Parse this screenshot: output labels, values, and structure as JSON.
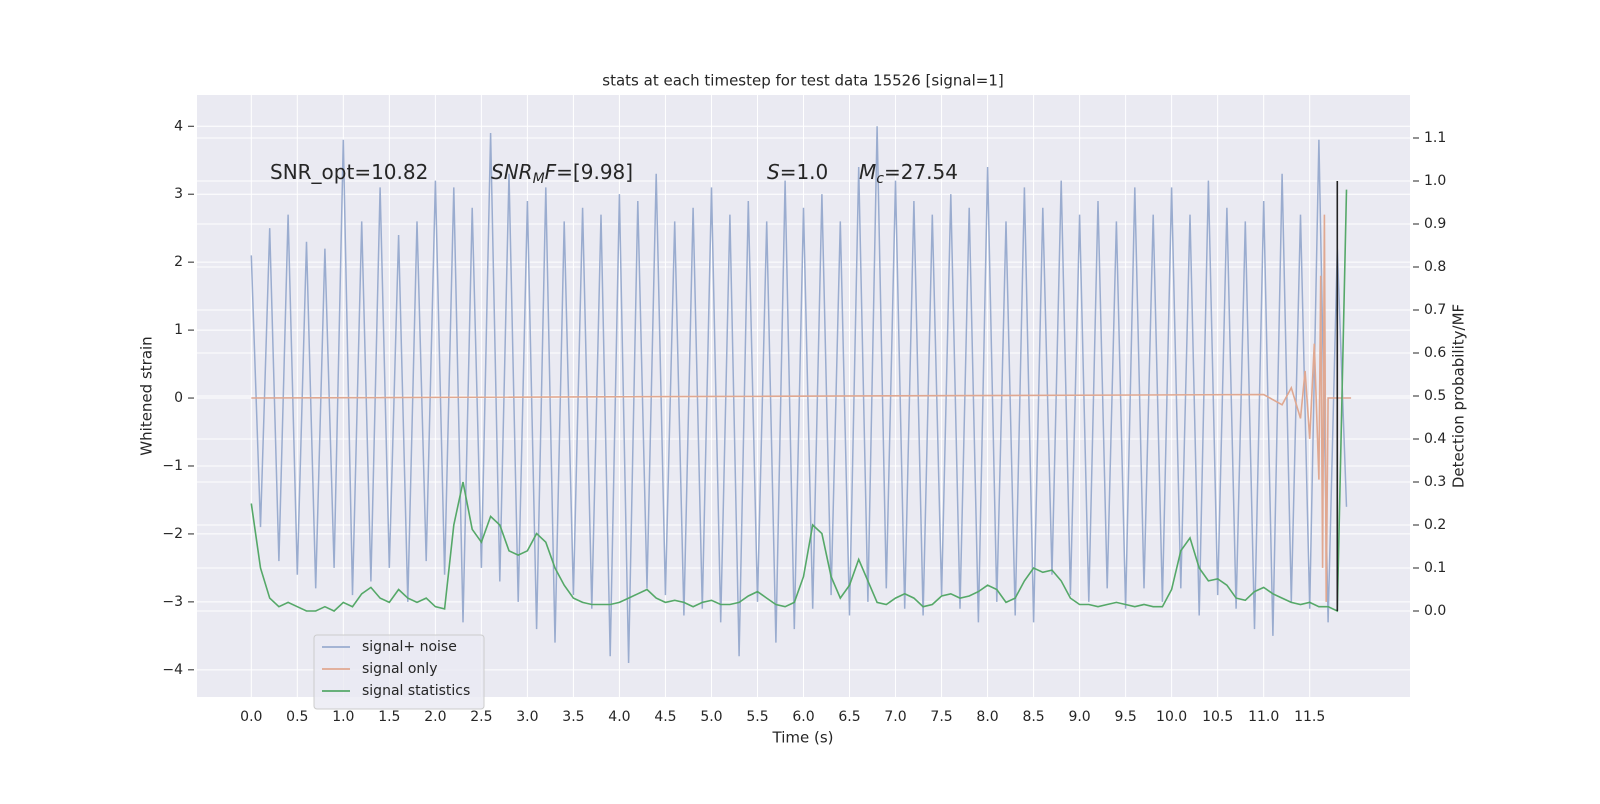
{
  "chart_data": {
    "type": "line",
    "title": "stats at each timestep for test data 15526 [signal=1]",
    "xlabel": "Time (s)",
    "ylabel": "Whitened strain",
    "y2label": "Detection probability/MF",
    "x": [
      0.0,
      0.1,
      0.2,
      0.3,
      0.4,
      0.5,
      0.6,
      0.7,
      0.8,
      0.9,
      1.0,
      1.1,
      1.2,
      1.3,
      1.4,
      1.5,
      1.6,
      1.7,
      1.8,
      1.9,
      2.0,
      2.1,
      2.2,
      2.3,
      2.4,
      2.5,
      2.6,
      2.7,
      2.8,
      2.9,
      3.0,
      3.1,
      3.2,
      3.3,
      3.4,
      3.5,
      3.6,
      3.7,
      3.8,
      3.9,
      4.0,
      4.1,
      4.2,
      4.3,
      4.4,
      4.5,
      4.6,
      4.7,
      4.8,
      4.9,
      5.0,
      5.1,
      5.2,
      5.3,
      5.4,
      5.5,
      5.6,
      5.7,
      5.8,
      5.9,
      6.0,
      6.1,
      6.2,
      6.3,
      6.4,
      6.5,
      6.6,
      6.7,
      6.8,
      6.9,
      7.0,
      7.1,
      7.2,
      7.3,
      7.4,
      7.5,
      7.6,
      7.7,
      7.8,
      7.9,
      8.0,
      8.1,
      8.2,
      8.3,
      8.4,
      8.5,
      8.6,
      8.7,
      8.8,
      8.9,
      9.0,
      9.1,
      9.2,
      9.3,
      9.4,
      9.5,
      9.6,
      9.7,
      9.8,
      9.9,
      10.0,
      10.1,
      10.2,
      10.3,
      10.4,
      10.5,
      10.6,
      10.7,
      10.8,
      10.9,
      11.0,
      11.1,
      11.2,
      11.3,
      11.4,
      11.5,
      11.6,
      11.7,
      11.8,
      11.9
    ],
    "series": [
      {
        "name": "signal+ noise",
        "color": "#9aaccf",
        "values": [
          2.1,
          -1.9,
          2.5,
          -2.4,
          2.7,
          -2.6,
          2.3,
          -2.8,
          2.2,
          -2.5,
          3.8,
          -2.9,
          2.6,
          -2.7,
          3.1,
          -2.5,
          2.4,
          -3.0,
          2.6,
          -2.4,
          3.2,
          -2.6,
          3.1,
          -3.3,
          2.8,
          -2.5,
          3.9,
          -2.7,
          3.3,
          -3.0,
          2.9,
          -3.4,
          3.1,
          -3.6,
          2.6,
          -2.9,
          2.8,
          -3.1,
          2.7,
          -3.8,
          3.0,
          -3.9,
          2.9,
          -2.8,
          3.3,
          -2.9,
          2.6,
          -3.2,
          2.8,
          -3.1,
          3.1,
          -3.3,
          2.7,
          -3.8,
          2.9,
          -3.0,
          2.6,
          -3.6,
          3.2,
          -3.4,
          2.8,
          -3.1,
          3.0,
          -2.9,
          2.6,
          -3.2,
          3.4,
          -3.0,
          4.0,
          -2.8,
          3.2,
          -3.1,
          2.9,
          -3.2,
          2.7,
          -2.9,
          3.0,
          -3.1,
          2.8,
          -3.3,
          3.4,
          -3.0,
          2.6,
          -3.2,
          3.1,
          -3.3,
          2.8,
          -2.6,
          3.2,
          -2.9,
          2.7,
          -3.0,
          2.9,
          -2.8,
          2.6,
          -3.1,
          3.1,
          -2.8,
          2.7,
          -3.0,
          3.1,
          -2.8,
          2.7,
          -3.2,
          3.2,
          -2.9,
          2.8,
          -3.1,
          2.6,
          -3.4,
          2.9,
          -3.5,
          3.3,
          -3.0,
          2.7,
          -3.1,
          3.8,
          -3.3,
          2.2,
          -1.6
        ]
      },
      {
        "name": "signal only",
        "color": "#e0a891",
        "x": [
          0.0,
          11.0,
          11.2,
          11.3,
          11.4,
          11.45,
          11.5,
          11.55,
          11.6,
          11.62,
          11.64,
          11.66,
          11.68,
          11.7,
          11.95
        ],
        "values": [
          0.0,
          0.05,
          -0.1,
          0.15,
          -0.3,
          0.4,
          -0.6,
          0.8,
          -1.2,
          1.8,
          -2.5,
          2.7,
          -3.0,
          0.0,
          0.0
        ]
      },
      {
        "name": "signal statistics",
        "color": "#55a868",
        "axis": "y2",
        "values": [
          0.25,
          0.1,
          0.03,
          0.01,
          0.02,
          0.01,
          0.0,
          0.0,
          0.01,
          0.0,
          0.02,
          0.01,
          0.04,
          0.055,
          0.03,
          0.02,
          0.05,
          0.03,
          0.02,
          0.03,
          0.01,
          0.005,
          0.2,
          0.3,
          0.19,
          0.16,
          0.22,
          0.2,
          0.14,
          0.13,
          0.14,
          0.18,
          0.16,
          0.1,
          0.06,
          0.03,
          0.02,
          0.015,
          0.015,
          0.015,
          0.02,
          0.03,
          0.04,
          0.05,
          0.03,
          0.02,
          0.025,
          0.02,
          0.01,
          0.02,
          0.025,
          0.015,
          0.015,
          0.02,
          0.035,
          0.045,
          0.03,
          0.015,
          0.01,
          0.02,
          0.08,
          0.2,
          0.18,
          0.08,
          0.03,
          0.06,
          0.12,
          0.07,
          0.02,
          0.015,
          0.03,
          0.04,
          0.03,
          0.01,
          0.015,
          0.035,
          0.04,
          0.03,
          0.035,
          0.045,
          0.06,
          0.05,
          0.02,
          0.03,
          0.07,
          0.1,
          0.09,
          0.095,
          0.07,
          0.03,
          0.015,
          0.015,
          0.01,
          0.015,
          0.02,
          0.015,
          0.01,
          0.015,
          0.01,
          0.01,
          0.05,
          0.14,
          0.17,
          0.1,
          0.07,
          0.075,
          0.06,
          0.03,
          0.025,
          0.045,
          0.055,
          0.04,
          0.03,
          0.02,
          0.015,
          0.02,
          0.01,
          0.01,
          0.0,
          0.98
        ]
      }
    ],
    "vline": {
      "x": 11.8,
      "y2": [
        0.0,
        1.0
      ],
      "color": "#222222"
    },
    "annotations": [
      [
        {
          "text": "SNR_opt=10.82"
        }
      ],
      [
        {
          "text": "SNR",
          "italic": true
        },
        {
          "text": "M",
          "italic": true,
          "sub": true
        },
        {
          "text": "F",
          "italic": true
        },
        {
          "text": "=[9.98]"
        }
      ],
      [
        {
          "text": "S",
          "italic": true
        },
        {
          "text": "=1.0"
        }
      ],
      [
        {
          "text": "M",
          "italic": true
        },
        {
          "text": "c",
          "italic": true,
          "sub": true
        },
        {
          "text": "=27.54"
        }
      ]
    ],
    "xlim": [
      -0.59,
      12.59
    ],
    "ylim": [
      -4.4,
      4.46
    ],
    "y2lim": [
      -0.2,
      1.2
    ],
    "xticks": [
      {
        "value": 0,
        "label": "0.0"
      },
      0.5,
      {
        "value": 1,
        "label": "1.0"
      },
      1.5,
      {
        "value": 2,
        "label": "2.0"
      },
      2.5,
      {
        "value": 3,
        "label": "3.0"
      },
      3.5,
      {
        "value": 4,
        "label": "4.0"
      },
      4.5,
      {
        "value": 5,
        "label": "5.0"
      },
      5.5,
      {
        "value": 6,
        "label": "6.0"
      },
      6.5,
      {
        "value": 7,
        "label": "7.0"
      },
      7.5,
      {
        "value": 8,
        "label": "8.0"
      },
      8.5,
      {
        "value": 9,
        "label": "9.0"
      },
      9.5,
      {
        "value": 10,
        "label": "10.0"
      },
      10.5,
      {
        "value": 11,
        "label": "11.0"
      },
      11.5
    ],
    "yticks": [
      {
        "value": -4,
        "label": "−4"
      },
      {
        "value": -3,
        "label": "−3"
      },
      {
        "value": -2,
        "label": "−2"
      },
      {
        "value": -1,
        "label": "−1"
      },
      0,
      1,
      2,
      3,
      4
    ],
    "y2ticks": [
      {
        "value": 0,
        "label": "0.0"
      },
      0.1,
      0.2,
      0.3,
      0.4,
      0.5,
      0.6,
      0.7,
      0.8,
      0.9,
      {
        "value": 1,
        "label": "1.0"
      },
      1.1
    ],
    "grid": true,
    "legend": "lower left"
  }
}
